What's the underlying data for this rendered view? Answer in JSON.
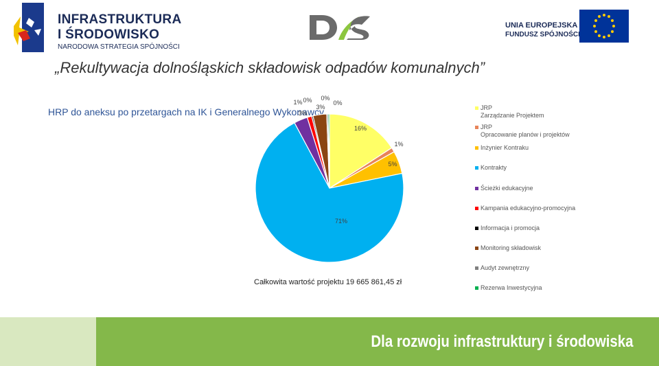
{
  "header": {
    "logo_left": {
      "line1": "INFRASTRUKTURA",
      "line2": "I ŚRODOWISKO",
      "line3": "NARODOWA STRATEGIA SPÓJNOŚCI"
    },
    "logo_right": {
      "line1": "UNIA EUROPEJSKA",
      "line2": "FUNDUSZ SPÓJNOŚCI"
    }
  },
  "slide": {
    "title": "„Rekultywacja dolnośląskich składowisk odpadów komunalnych”",
    "subtitle": "HRP do aneksu po przetargach na IK i Generalnego Wykonawcy",
    "total": "Całkowita wartość projektu 19 665 861,45 zł"
  },
  "chart_data": {
    "type": "pie",
    "categories": [
      "JRP\nZarządzanie Projektem",
      "JRP\nOpracowanie planów i projektów",
      "Inżynier Kontraku",
      "Kontrakty",
      "Ścieżki edukacyjne",
      "Kampania edukacyjno-promocyjna",
      "Informacja i promocja",
      "Monitoring składowisk",
      "Audyt zewnętrzny",
      "Rezerwa Inwestycyjna"
    ],
    "values": [
      16,
      1,
      5,
      71,
      3,
      1,
      0,
      3,
      0,
      0
    ],
    "data_labels": [
      "16%",
      "1%",
      "5%",
      "71%",
      "3%",
      "1%",
      "0%",
      "3%",
      "0%",
      "0%"
    ],
    "colors": [
      "#ffff66",
      "#e8845a",
      "#ffc000",
      "#00b0f0",
      "#7030a0",
      "#ff0000",
      "#000000",
      "#8b4513",
      "#808080",
      "#00b050"
    ],
    "legend_position": "right"
  },
  "footer": {
    "slogan": "Dla rozwoju infrastruktury i środowiska"
  }
}
